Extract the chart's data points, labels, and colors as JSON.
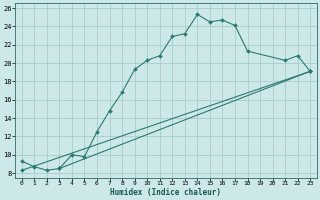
{
  "xlabel": "Humidex (Indice chaleur)",
  "ylabel": "",
  "bg_color": "#cce8e8",
  "grid_color": "#aacccc",
  "line_color": "#2d7a6e",
  "xlim": [
    -0.5,
    23.5
  ],
  "ylim": [
    7.5,
    26.5
  ],
  "xticks": [
    0,
    1,
    2,
    3,
    4,
    5,
    6,
    7,
    8,
    9,
    10,
    11,
    12,
    13,
    14,
    15,
    16,
    17,
    18,
    19,
    20,
    21,
    22,
    23
  ],
  "yticks": [
    8,
    10,
    12,
    14,
    16,
    18,
    20,
    22,
    24,
    26
  ],
  "line1_x": [
    0,
    1,
    2,
    3,
    4,
    5,
    6,
    7,
    8,
    9,
    10,
    11,
    12,
    13,
    14,
    15,
    16,
    17,
    18,
    21,
    22,
    23
  ],
  "line1_y": [
    9.3,
    8.7,
    8.3,
    8.5,
    10.0,
    9.8,
    12.5,
    14.8,
    16.8,
    19.3,
    20.3,
    20.8,
    22.9,
    23.2,
    25.3,
    24.5,
    24.7,
    24.1,
    21.3,
    20.3,
    20.8,
    19.1
  ],
  "line2_x": [
    0,
    23
  ],
  "line2_y": [
    8.3,
    19.1
  ],
  "line3_x": [
    3,
    23
  ],
  "line3_y": [
    8.5,
    19.1
  ]
}
